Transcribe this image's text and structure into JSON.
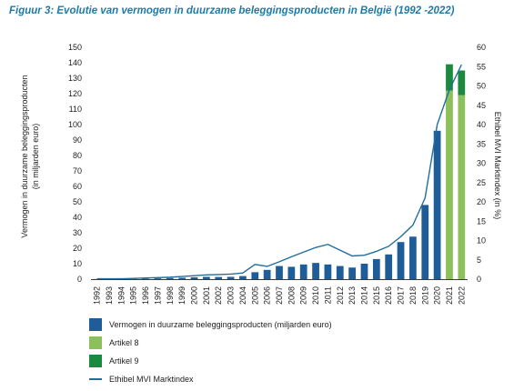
{
  "title": "Figuur 3: Evolutie van vermogen in duurzame beleggingsproducten in België (1992 -2022)",
  "chart_data": {
    "type": "bar",
    "categories": [
      "1992",
      "1993",
      "1994",
      "1995",
      "1996",
      "1997",
      "1998",
      "1999",
      "2000",
      "2001",
      "2002",
      "2003",
      "2004",
      "2005",
      "2006",
      "2007",
      "2008",
      "2009",
      "2010",
      "2011",
      "2012",
      "2013",
      "2014",
      "2015",
      "2016",
      "2017",
      "2018",
      "2019",
      "2020",
      "2021",
      "2022"
    ],
    "ylabel": "Vermogen in duurzame beleggingsproducten (in miljarden euro)",
    "ylabel_lines": [
      "Vermogen in duurzame beleggingsproducten",
      "(in miljarden euro)"
    ],
    "y2label": "Ethibel MVI Marktindex (in %)",
    "ylim": [
      0,
      150
    ],
    "y2lim": [
      0,
      60
    ],
    "yticks": [
      0,
      10,
      20,
      30,
      40,
      50,
      60,
      70,
      80,
      90,
      100,
      110,
      120,
      130,
      140,
      150
    ],
    "y2ticks": [
      0,
      5,
      10,
      15,
      20,
      25,
      30,
      35,
      40,
      45,
      50,
      55,
      60
    ],
    "grid": false,
    "legend_position": "bottom-left",
    "series": [
      {
        "name": "Vermogen in duurzame beleggingsproducten (miljarden euro)",
        "kind": "bar",
        "color": "#1f5d99",
        "values": [
          0.1,
          0.1,
          0.1,
          0.2,
          0.3,
          0.5,
          0.7,
          0.9,
          1.2,
          1.5,
          1.4,
          1.5,
          2.0,
          4.5,
          6.0,
          8.5,
          8.0,
          9.5,
          10.5,
          9.5,
          8.5,
          7.5,
          10.0,
          13.0,
          16.0,
          24.0,
          27.5,
          48.0,
          96.0,
          null,
          null
        ]
      },
      {
        "name": "Artikel 8",
        "kind": "stacked",
        "color": "#8cc05a",
        "values": [
          null,
          null,
          null,
          null,
          null,
          null,
          null,
          null,
          null,
          null,
          null,
          null,
          null,
          null,
          null,
          null,
          null,
          null,
          null,
          null,
          null,
          null,
          null,
          null,
          null,
          null,
          null,
          null,
          null,
          122,
          119
        ]
      },
      {
        "name": "Artikel 9",
        "kind": "stacked",
        "color": "#1b8a3e",
        "values": [
          null,
          null,
          null,
          null,
          null,
          null,
          null,
          null,
          null,
          null,
          null,
          null,
          null,
          null,
          null,
          null,
          null,
          null,
          null,
          null,
          null,
          null,
          null,
          null,
          null,
          null,
          null,
          null,
          null,
          17,
          16
        ]
      },
      {
        "name": "Ethibel MVI Marktindex",
        "kind": "line",
        "axis": "right",
        "color": "#1f6e9e",
        "values": [
          0.1,
          0.1,
          0.1,
          0.2,
          0.3,
          0.4,
          0.5,
          0.7,
          0.9,
          1.1,
          1.2,
          1.3,
          1.6,
          3.8,
          3.3,
          4.5,
          5.8,
          7.0,
          8.2,
          9.0,
          7.5,
          6.0,
          6.2,
          7.2,
          8.5,
          11.0,
          14.0,
          21.0,
          40.0,
          49.0,
          55.5
        ]
      }
    ]
  },
  "legend": [
    {
      "label": "Vermogen in duurzame beleggingsproducten (miljarden euro)",
      "color": "#1f5d99",
      "shape": "square"
    },
    {
      "label": "Artikel 8",
      "color": "#8cc05a",
      "shape": "square"
    },
    {
      "label": "Artikel 9",
      "color": "#1b8a3e",
      "shape": "square"
    },
    {
      "label": "Ethibel MVI Marktindex",
      "color": "#1f6e9e",
      "shape": "line"
    }
  ]
}
